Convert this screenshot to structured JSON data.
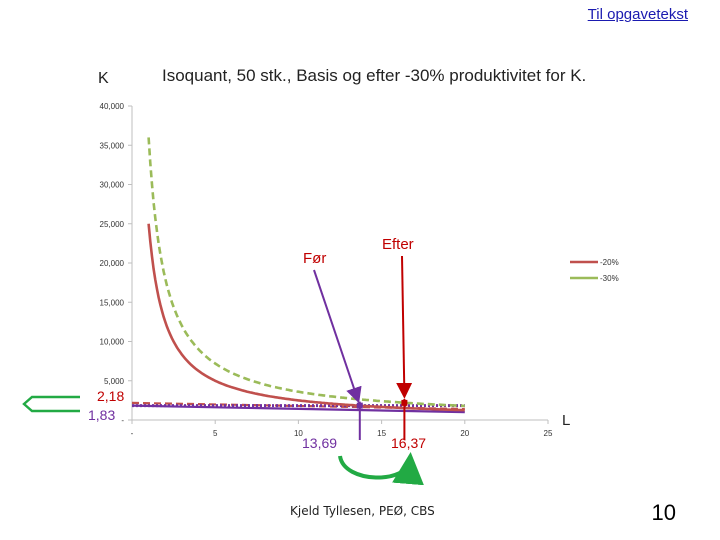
{
  "nav": {
    "link_label": "Til opgavetekst"
  },
  "footer": {
    "author": "Kjeld Tyllesen, PEØ, CBS",
    "page_number": "10"
  },
  "chart_data": {
    "type": "line",
    "title": "Isoquant, 50 stk., Basis og efter -30% produktivitet for K.",
    "ylabel": "K",
    "xlabel": "L",
    "ylim": [
      0,
      40
    ],
    "xlim": [
      0,
      25
    ],
    "y_ticks": [
      {
        "value": 0,
        "label": "-"
      },
      {
        "value": 5,
        "label": "5,000"
      },
      {
        "value": 10,
        "label": "10,000"
      },
      {
        "value": 15,
        "label": "15,000"
      },
      {
        "value": 20,
        "label": "20,000"
      },
      {
        "value": 25,
        "label": "25,000"
      },
      {
        "value": 30,
        "label": "30,000"
      },
      {
        "value": 35,
        "label": "35,000"
      },
      {
        "value": 40,
        "label": "40,000"
      }
    ],
    "x_ticks": [
      {
        "value": 0,
        "label": "-"
      },
      {
        "value": 5,
        "label": "5"
      },
      {
        "value": 10,
        "label": "10"
      },
      {
        "value": 15,
        "label": "15"
      },
      {
        "value": 20,
        "label": "20"
      },
      {
        "value": 25,
        "label": "25"
      }
    ],
    "series": [
      {
        "name": "-20%",
        "color": "#c0504d",
        "style": "solid",
        "x_min": 1,
        "x_max": 20,
        "k_const": 25
      },
      {
        "name": "-30%",
        "color": "#9bbb59",
        "style": "dashed",
        "x_min": 1,
        "x_max": 20,
        "k_const": 36
      }
    ],
    "budget_lines": [
      {
        "color": "#c0504d",
        "style": "dashed",
        "x": [
          0,
          20
        ],
        "y": [
          2.18,
          1.4
        ]
      },
      {
        "color": "#7030a0",
        "style": "solid",
        "x": [
          0,
          20
        ],
        "y": [
          1.83,
          1.0
        ]
      },
      {
        "color": "#7030a0",
        "style": "dotted",
        "x": [
          0,
          20
        ],
        "y": [
          1.83,
          1.83
        ]
      }
    ],
    "markers": [
      {
        "x": 13.69,
        "y": 1.83,
        "color": "#7030a0"
      },
      {
        "x": 16.37,
        "y": 2.18,
        "color": "#c00000"
      }
    ],
    "value_labels": [
      {
        "id": "y-val-218",
        "text": "2,18",
        "color": "#c00000"
      },
      {
        "id": "y-val-183",
        "text": "1,83",
        "color": "#7030a0"
      },
      {
        "id": "x-val-1369",
        "text": "13,69",
        "color": "#7030a0"
      },
      {
        "id": "x-val-1637",
        "text": "16,37",
        "color": "#c00000"
      }
    ],
    "annotations": [
      {
        "id": "annotation-foer",
        "text": "Før",
        "color": "#c00000",
        "arrow_color": "#7030a0"
      },
      {
        "id": "annotation-efter",
        "text": "Efter",
        "color": "#c00000",
        "arrow_color": "#c00000"
      }
    ],
    "legend": {
      "position": "right",
      "entries": [
        "-20%",
        "-30%"
      ]
    },
    "grid": false
  }
}
